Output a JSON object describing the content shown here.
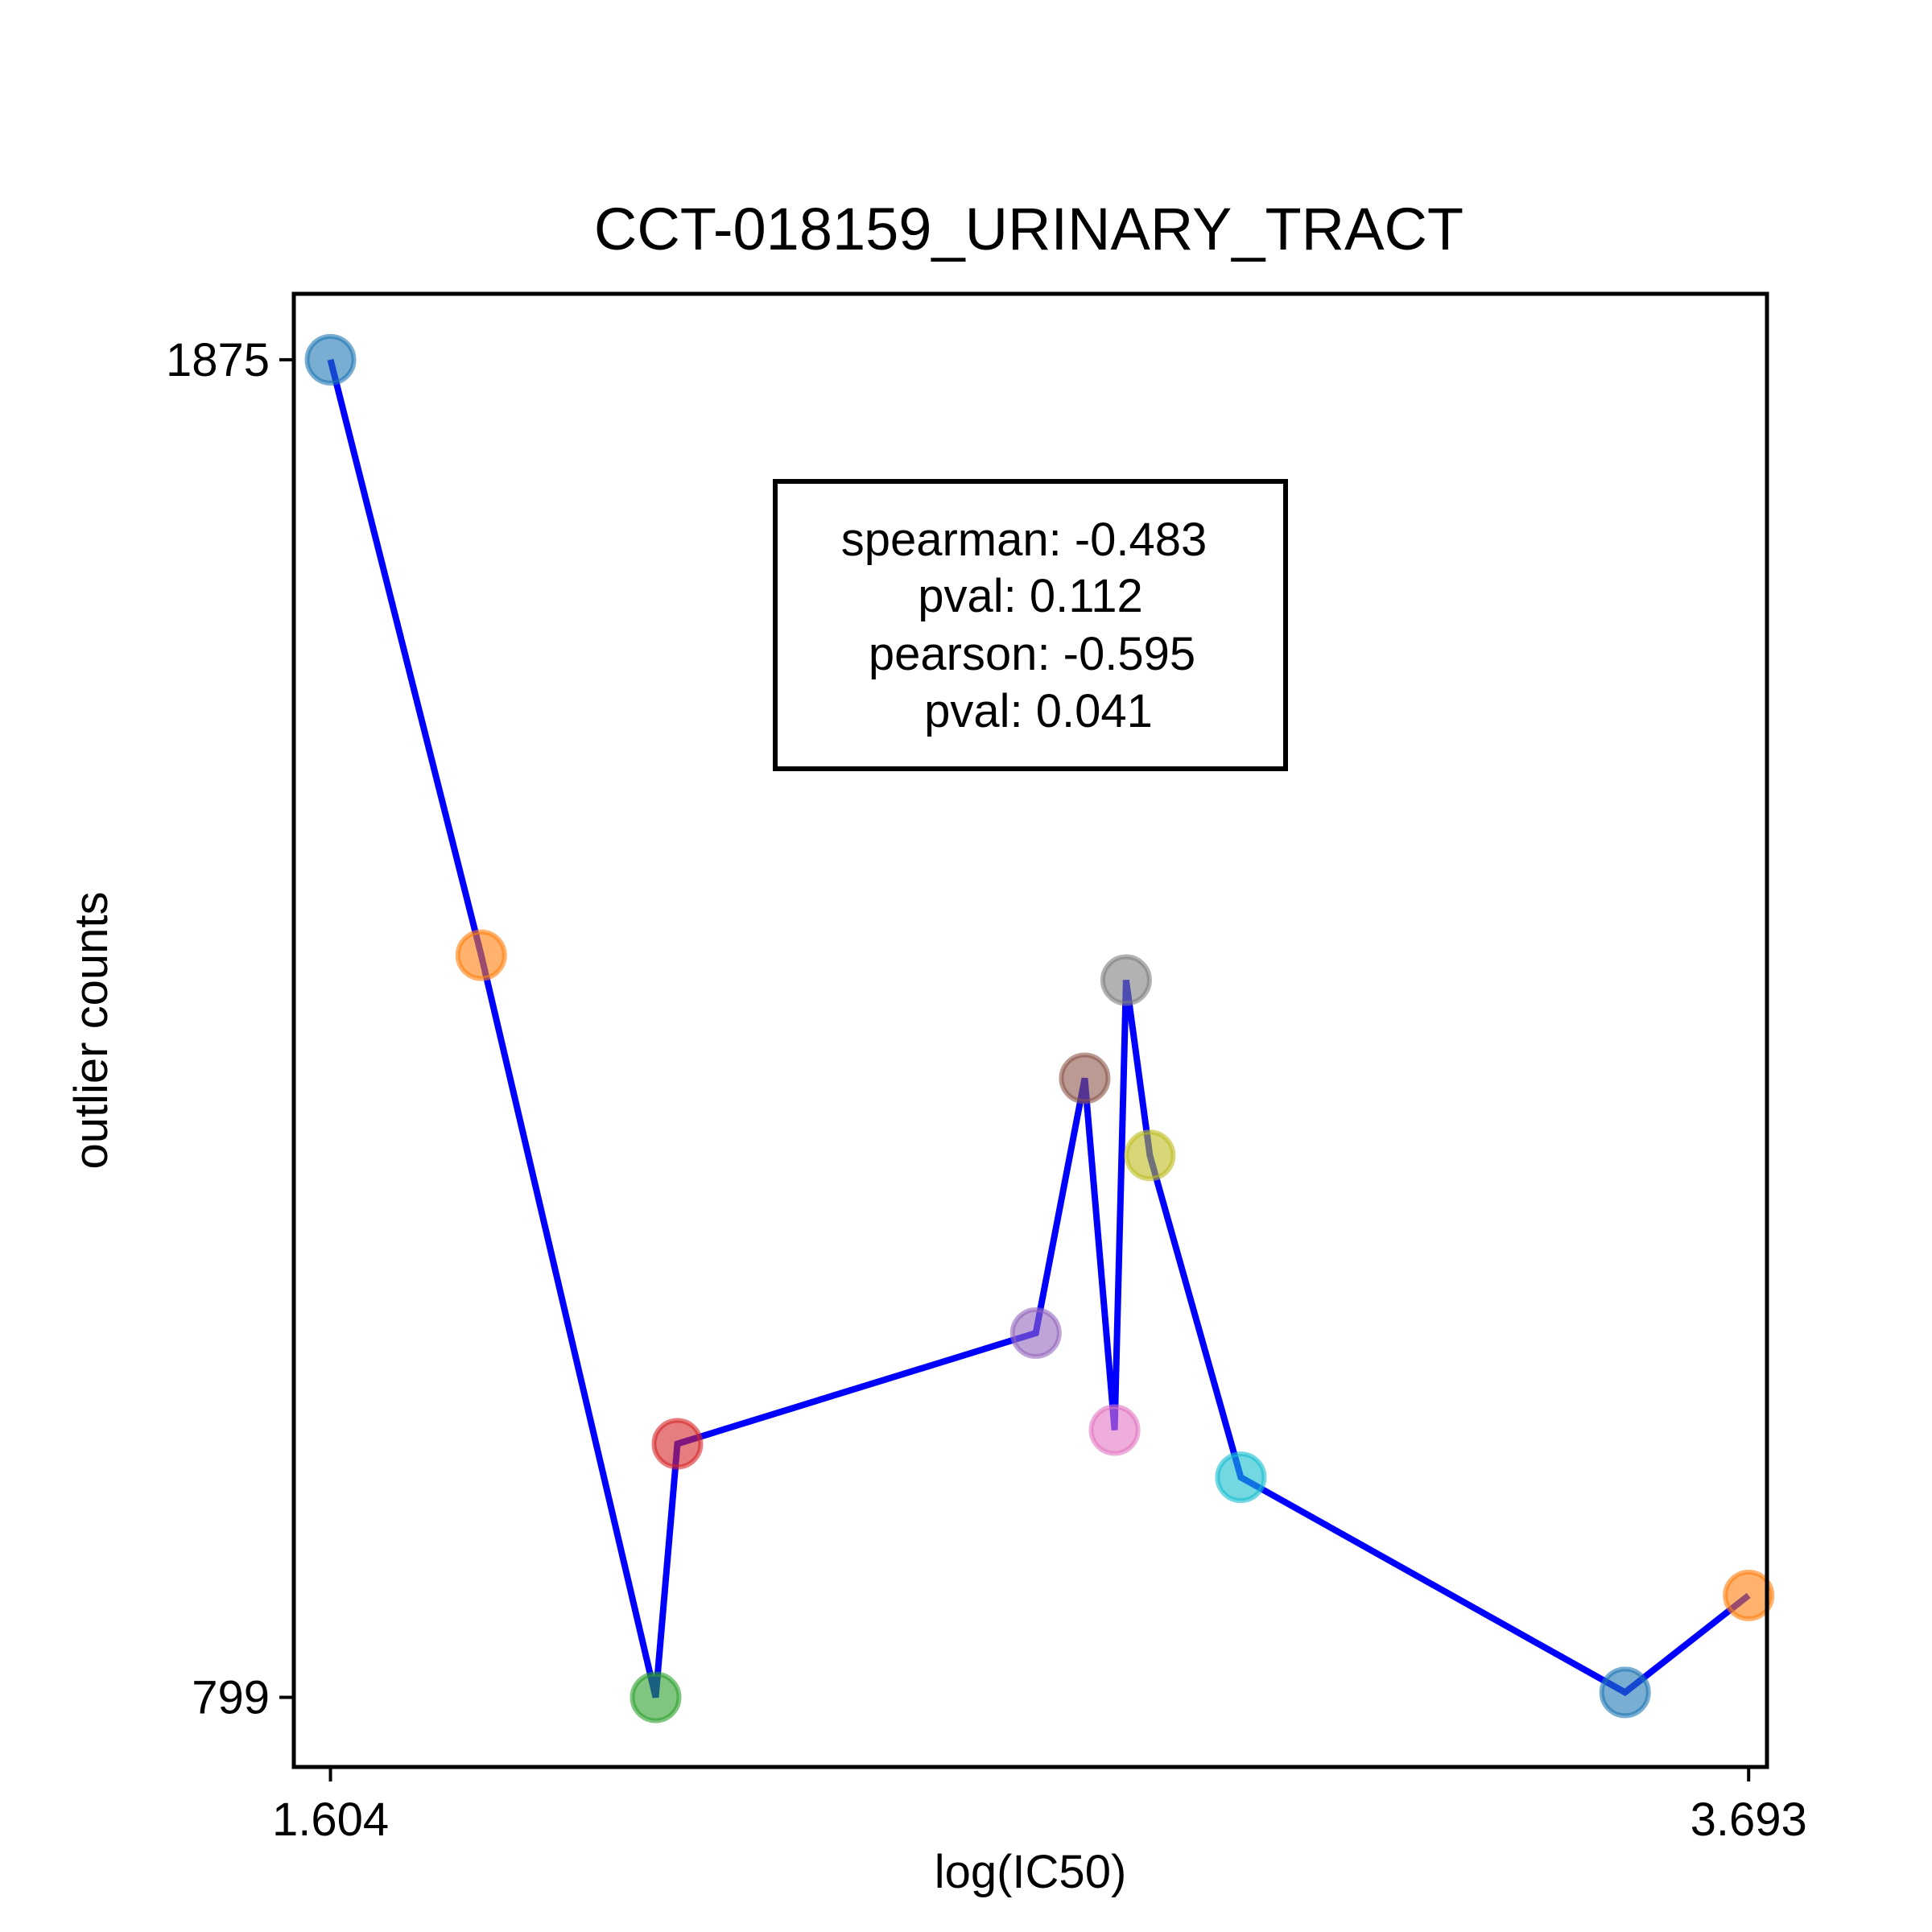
{
  "chart_data": {
    "type": "scatter",
    "title": "CCT-018159_URINARY_TRACT",
    "xlabel": "log(IC50)",
    "ylabel": "outlier counts",
    "xlim": [
      1.55,
      3.72
    ],
    "ylim": [
      743,
      1928
    ],
    "xticks": [
      1.604,
      3.693
    ],
    "xtick_labels": [
      "1.604",
      "3.693"
    ],
    "yticks": [
      799,
      1875
    ],
    "ytick_labels": [
      "799",
      "1875"
    ],
    "line_color": "#0000ff",
    "stats": {
      "lines": [
        "spearman: -0.483",
        "pval: 0.112",
        "pearson: -0.595",
        "pval: 0.041"
      ]
    },
    "points": [
      {
        "x": 1.604,
        "y": 1875,
        "color": "#1f77b4"
      },
      {
        "x": 1.826,
        "y": 1396,
        "color": "#ff7f0e"
      },
      {
        "x": 2.083,
        "y": 799,
        "color": "#2ca02c"
      },
      {
        "x": 2.115,
        "y": 1003,
        "color": "#d62728"
      },
      {
        "x": 2.643,
        "y": 1092,
        "color": "#9467bd"
      },
      {
        "x": 2.715,
        "y": 1297,
        "color": "#8c564b"
      },
      {
        "x": 2.759,
        "y": 1014,
        "color": "#e377c2"
      },
      {
        "x": 2.776,
        "y": 1376,
        "color": "#7f7f7f"
      },
      {
        "x": 2.811,
        "y": 1235,
        "color": "#bcbd22"
      },
      {
        "x": 2.945,
        "y": 976,
        "color": "#17becf"
      },
      {
        "x": 3.511,
        "y": 803,
        "color": "#1f77b4"
      },
      {
        "x": 3.693,
        "y": 881,
        "color": "#ff7f0e"
      }
    ]
  }
}
